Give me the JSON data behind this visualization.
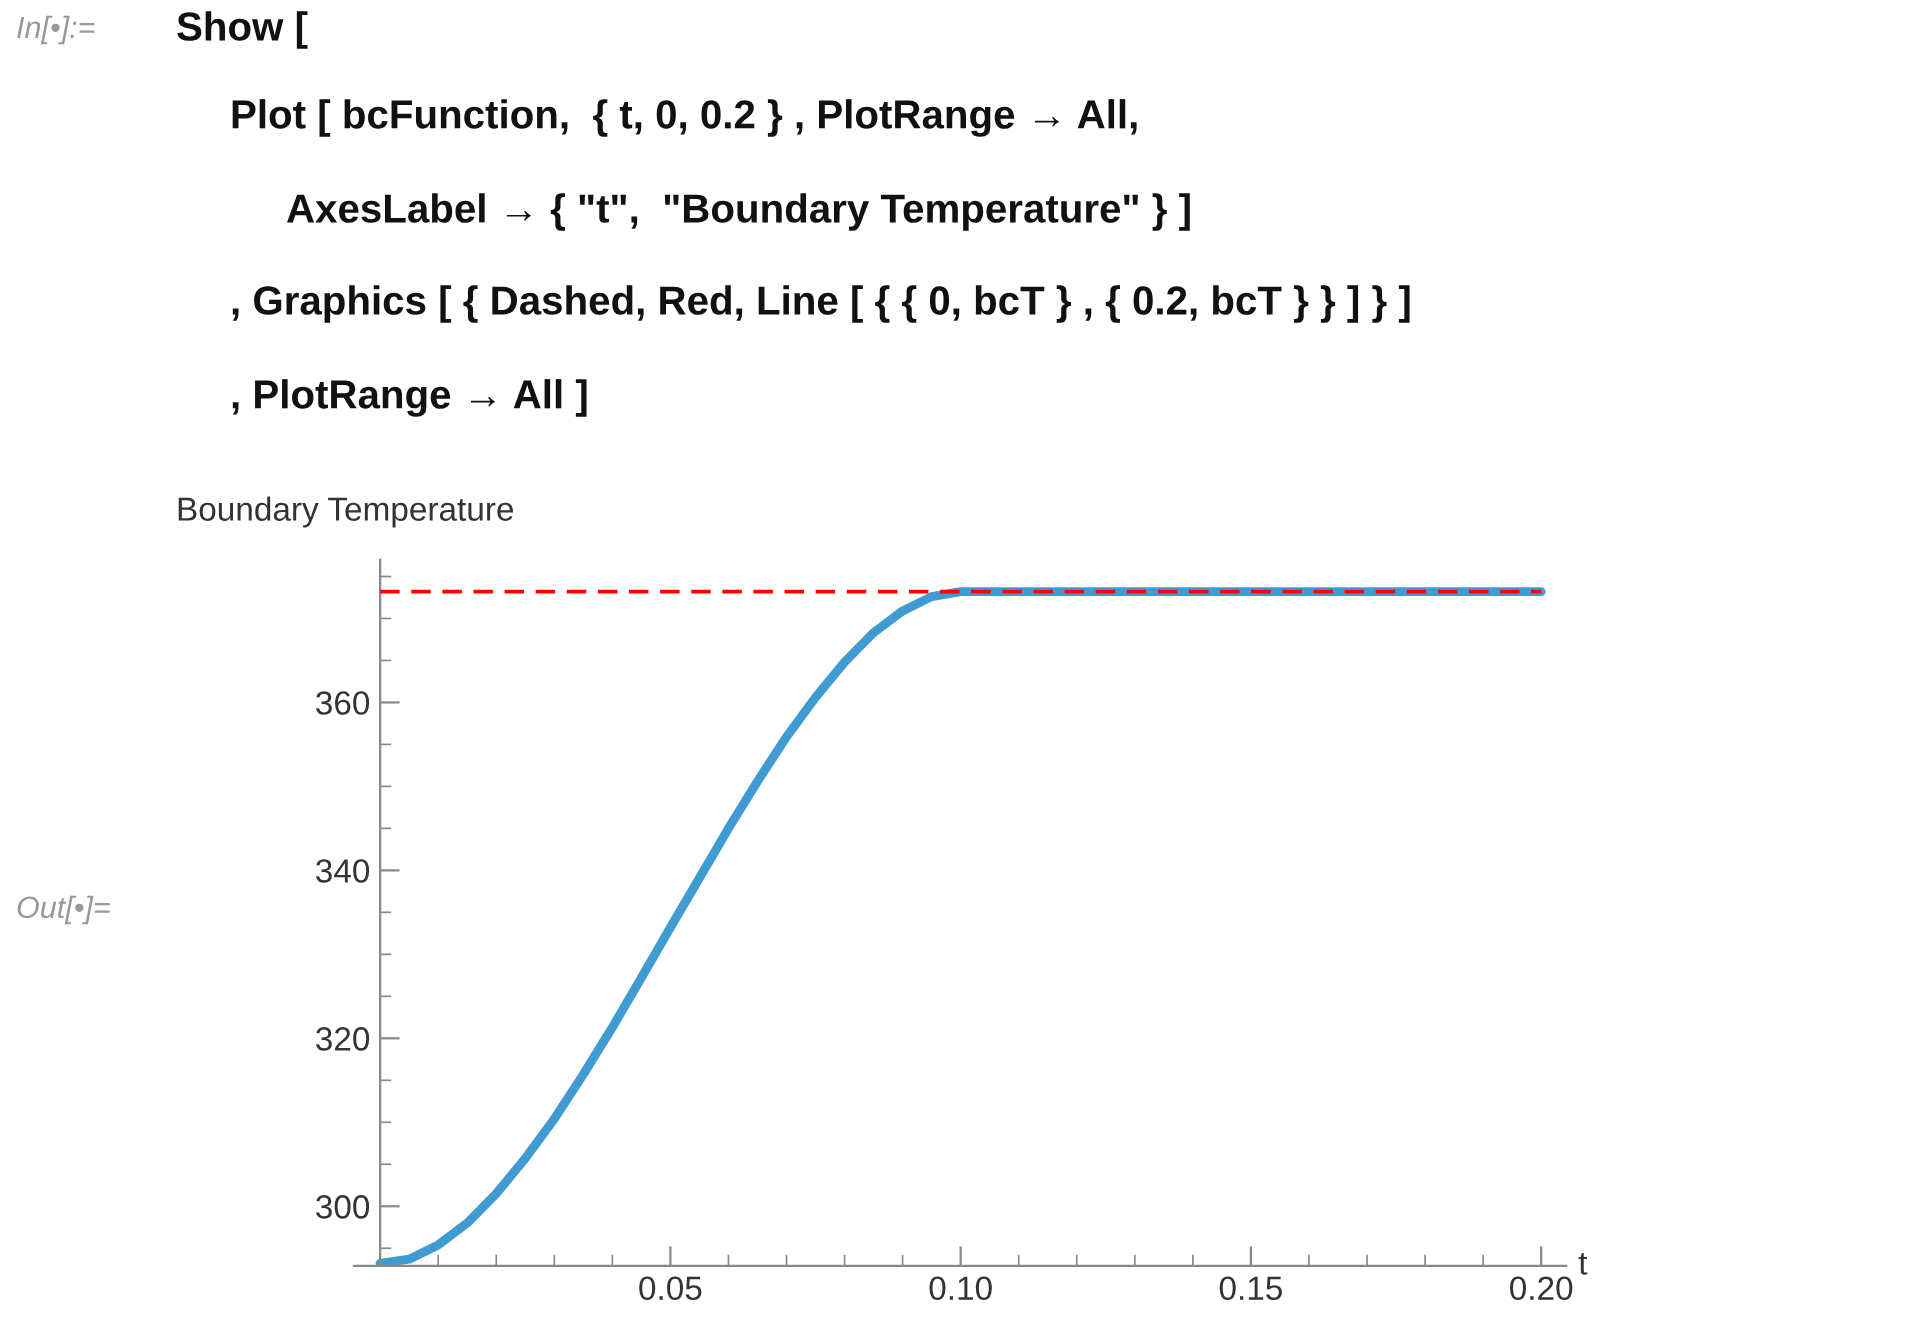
{
  "chart_data": {
    "type": "line",
    "ylabel": "Boundary Temperature",
    "xlabel": "t",
    "x": [
      0,
      0.005,
      0.01,
      0.015,
      0.02,
      0.025,
      0.03,
      0.035,
      0.04,
      0.045,
      0.05,
      0.055,
      0.06,
      0.065,
      0.07,
      0.075,
      0.08,
      0.085,
      0.09,
      0.095,
      0.1,
      0.15,
      0.2
    ],
    "series": [
      {
        "color": "#3f9bd2",
        "values": [
          293.2,
          293.7,
          295.4,
          298.0,
          301.5,
          305.7,
          310.4,
          315.7,
          321.3,
          327.2,
          333.2,
          339.1,
          345.0,
          350.6,
          355.9,
          360.6,
          364.8,
          368.3,
          370.9,
          372.6,
          373.2,
          373.2,
          373.2
        ]
      }
    ],
    "xlim": [
      -0.0045,
      0.2043
    ],
    "ylim": [
      292.9,
      377
    ],
    "xticks": [
      {
        "value": 0.05,
        "label": "0.05"
      },
      {
        "value": 0.1,
        "label": "0.10"
      },
      {
        "value": 0.15,
        "label": "0.15"
      },
      {
        "value": 0.2,
        "label": "0.20"
      }
    ],
    "yticks": [
      300,
      320,
      340,
      360
    ],
    "ref_lines": [
      {
        "axis": "y",
        "value": 373.2,
        "color": "#ff0000",
        "line_style": "dashed"
      }
    ],
    "grid": false,
    "marker": "none",
    "line_style": "solid",
    "annotations": [
      "In[•]:=",
      "Show [",
      "Plot [ bcFunction,  { t, 0, 0.2 } , PlotRange → All,",
      "AxesLabel → { \"t\",  \"Boundary Temperature\" } ]",
      ", Graphics [ { Dashed, Red, Line [ { { 0, bcT } , { 0.2, bcT } } ] } ]",
      ", PlotRange → All ]",
      "Out[•]="
    ]
  }
}
